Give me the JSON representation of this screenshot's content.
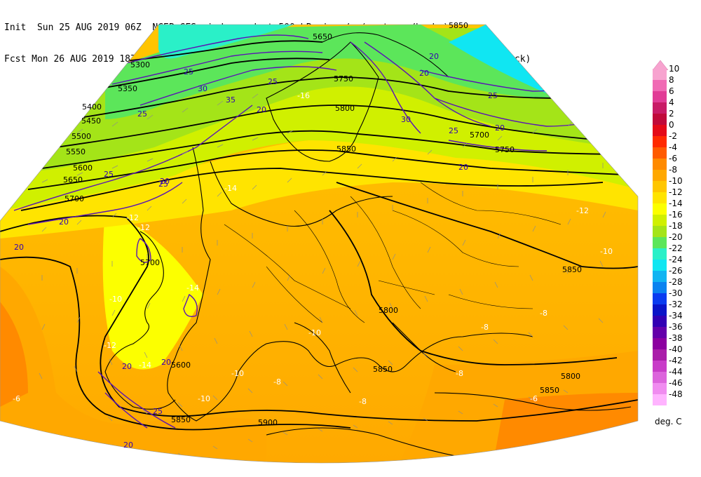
{
  "header": {
    "line1": "Init  Sun 25 AUG 2019 06Z  NCEP GFS wind speed at 500 hPa in m/s (contours/barbs)",
    "line2": "Fcst Mon 26 AUG 2019 18Z  temperature (shaded/dotted) and geopotential height at 500 hPa (black)"
  },
  "legend": {
    "units": "deg. C",
    "entries": [
      {
        "label": "10",
        "color": "#f7a3cf"
      },
      {
        "label": "8",
        "color": "#f06ab4"
      },
      {
        "label": "6",
        "color": "#e13c96"
      },
      {
        "label": "4",
        "color": "#c81b66"
      },
      {
        "label": "2",
        "color": "#c00a3a"
      },
      {
        "label": "0",
        "color": "#e40a18"
      },
      {
        "label": "-2",
        "color": "#ff2a00"
      },
      {
        "label": "-4",
        "color": "#ff5a00"
      },
      {
        "label": "-6",
        "color": "#ff8a00"
      },
      {
        "label": "-8",
        "color": "#ffa800"
      },
      {
        "label": "-10",
        "color": "#ffc600"
      },
      {
        "label": "-12",
        "color": "#ffe400"
      },
      {
        "label": "-14",
        "color": "#fcff00"
      },
      {
        "label": "-16",
        "color": "#d0f000"
      },
      {
        "label": "-18",
        "color": "#a4e418"
      },
      {
        "label": "-20",
        "color": "#5ce65a"
      },
      {
        "label": "-22",
        "color": "#2af0c8"
      },
      {
        "label": "-24",
        "color": "#10e6f2"
      },
      {
        "label": "-26",
        "color": "#10b4f2"
      },
      {
        "label": "-28",
        "color": "#0a82f0"
      },
      {
        "label": "-30",
        "color": "#0a3cf0"
      },
      {
        "label": "-32",
        "color": "#0a14c8"
      },
      {
        "label": "-34",
        "color": "#3200b4"
      },
      {
        "label": "-36",
        "color": "#6400aa"
      },
      {
        "label": "-38",
        "color": "#8c00a0"
      },
      {
        "label": "-40",
        "color": "#aa1eaa"
      },
      {
        "label": "-42",
        "color": "#c83cc8"
      },
      {
        "label": "-44",
        "color": "#dc64dc"
      },
      {
        "label": "-46",
        "color": "#f08cf0"
      },
      {
        "label": "-48",
        "color": "#ffb4ff"
      }
    ]
  },
  "map": {
    "height_labels": [
      "5300",
      "5350",
      "5400",
      "5450",
      "5500",
      "5550",
      "5600",
      "5650",
      "5700",
      "5850",
      "5750",
      "5800",
      "5850",
      "5700",
      "5750",
      "5700",
      "5600",
      "5800",
      "5650",
      "5850",
      "5800",
      "5850",
      "5850",
      "5850",
      "5900"
    ],
    "wind_labels": [
      "25",
      "30",
      "35",
      "25",
      "20",
      "25",
      "20",
      "25",
      "20",
      "20",
      "25",
      "20",
      "20",
      "20",
      "20",
      "30",
      "25",
      "25",
      "20",
      "25",
      "20",
      "20"
    ],
    "temp_labels": [
      "-12",
      "-12",
      "-14",
      "-14",
      "-12",
      "-10",
      "-10",
      "-16",
      "-12",
      "-14",
      "-8",
      "-10",
      "-10",
      "-10",
      "-8",
      "-8",
      "-8",
      "-8",
      "-6",
      "-6"
    ],
    "colors": {
      "warm": "#ff8c00",
      "mild": "#ffc600",
      "cool": "#fcff00",
      "cold1": "#a4e418",
      "cold2": "#2af0c8",
      "cold3": "#10e6f2",
      "border": "#000000",
      "wind": "#5a14b4",
      "height": "#000000"
    }
  }
}
